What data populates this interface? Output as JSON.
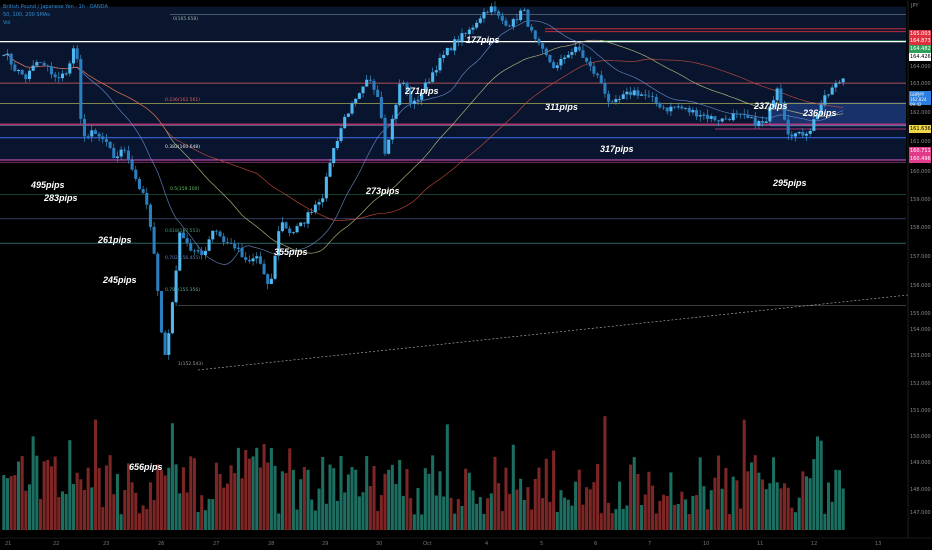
{
  "header": {
    "symbol_line": "British Pound / Japanese Yen · 1h · OANDA",
    "ma_line": "50, 100, 200 SMAs",
    "vol_line": "Vol"
  },
  "currency_label": "JPY",
  "pip_labels": [
    {
      "text": "177pips"
    },
    {
      "text": "271pips"
    },
    {
      "text": "311pips"
    },
    {
      "text": "237pips"
    },
    {
      "text": "236pips"
    },
    {
      "text": "317pips"
    },
    {
      "text": "295pips"
    },
    {
      "text": "495pips"
    },
    {
      "text": "283pips"
    },
    {
      "text": "273pips"
    },
    {
      "text": "261pips"
    },
    {
      "text": "355pips"
    },
    {
      "text": "245pips"
    },
    {
      "text": "656pips"
    }
  ],
  "fib_labels": [
    {
      "text": "0(165.658)"
    },
    {
      "text": "0.236(162.561)"
    },
    {
      "text": "0.382(160.648)"
    },
    {
      "text": "0.5(159.100)"
    },
    {
      "text": "0.618(157.553)"
    },
    {
      "text": "0.702(156.455)"
    },
    {
      "text": "0.786(155.356)"
    },
    {
      "text": "1(152.543)"
    }
  ],
  "price_axis": [
    "164.000",
    "163.000",
    "162.000",
    "161.000",
    "160.000",
    "159.000",
    "158.000",
    "157.000",
    "156.000",
    "155.000",
    "154.000",
    "153.000",
    "152.000",
    "151.000",
    "150.000",
    "149.000",
    "148.000",
    "147.000"
  ],
  "price_tags": [
    {
      "text": "165.003",
      "color": "#e03040"
    },
    {
      "text": "164.873",
      "color": "#e03040"
    },
    {
      "text": "164.482",
      "color": "#2f9e5a"
    },
    {
      "text": "164.426",
      "color": "#ffffff"
    },
    {
      "text": "GBPJPY 162.824 09:42",
      "color": "#2b7de0"
    },
    {
      "text": "161.636",
      "color": "#f0d84a"
    },
    {
      "text": "160.711",
      "color": "#e23a8a"
    },
    {
      "text": "160.496",
      "color": "#e23a8a"
    }
  ],
  "time_axis": [
    "21",
    "22",
    "23",
    "26",
    "27",
    "28",
    "29",
    "30",
    "Oct",
    "4",
    "5",
    "6",
    "7",
    "10",
    "11",
    "12",
    "13"
  ],
  "chart_data": {
    "type": "candlestick",
    "instrument": "GBPJPY",
    "timeframe": "1h",
    "last_price": 162.824,
    "y_range": [
      146.5,
      166.3
    ],
    "close_path": [
      [
        0,
        164.0
      ],
      [
        2,
        163.2
      ],
      [
        4,
        162.8
      ],
      [
        6,
        163.5
      ],
      [
        8,
        163.2
      ],
      [
        10,
        162.7
      ],
      [
        12,
        163.4
      ],
      [
        13,
        164.6
      ],
      [
        14,
        160.6
      ],
      [
        15,
        160.1
      ],
      [
        16,
        160.3
      ],
      [
        18,
        160.0
      ],
      [
        20,
        159.2
      ],
      [
        22,
        159.6
      ],
      [
        24,
        158.2
      ],
      [
        26,
        157.0
      ],
      [
        27,
        155.2
      ],
      [
        28,
        153.1
      ],
      [
        29,
        150.0
      ],
      [
        30,
        151.5
      ],
      [
        31,
        153.8
      ],
      [
        32,
        156.0
      ],
      [
        33,
        155.5
      ],
      [
        34,
        155.0
      ],
      [
        36,
        154.8
      ],
      [
        38,
        156.1
      ],
      [
        40,
        155.4
      ],
      [
        42,
        155.2
      ],
      [
        44,
        154.4
      ],
      [
        46,
        154.8
      ],
      [
        48,
        153.2
      ],
      [
        49,
        154.5
      ],
      [
        50,
        156.4
      ],
      [
        52,
        155.8
      ],
      [
        54,
        156.2
      ],
      [
        56,
        157.0
      ],
      [
        58,
        157.6
      ],
      [
        59,
        159.0
      ],
      [
        60,
        159.8
      ],
      [
        62,
        161.2
      ],
      [
        64,
        161.8
      ],
      [
        66,
        162.7
      ],
      [
        68,
        162.0
      ],
      [
        69,
        159.5
      ],
      [
        70,
        160.5
      ],
      [
        72,
        162.8
      ],
      [
        74,
        161.5
      ],
      [
        76,
        162.3
      ],
      [
        78,
        163.2
      ],
      [
        80,
        163.9
      ],
      [
        82,
        164.5
      ],
      [
        84,
        164.8
      ],
      [
        86,
        165.5
      ],
      [
        88,
        166.0
      ],
      [
        90,
        165.4
      ],
      [
        92,
        165.2
      ],
      [
        94,
        165.9
      ],
      [
        96,
        164.5
      ],
      [
        98,
        163.8
      ],
      [
        100,
        163.2
      ],
      [
        102,
        163.9
      ],
      [
        104,
        164.1
      ],
      [
        106,
        163.3
      ],
      [
        108,
        162.7
      ],
      [
        110,
        161.5
      ],
      [
        112,
        161.9
      ],
      [
        114,
        162.2
      ],
      [
        116,
        162.0
      ],
      [
        118,
        161.7
      ],
      [
        120,
        161.4
      ],
      [
        122,
        161.5
      ],
      [
        124,
        161.3
      ],
      [
        126,
        161.2
      ],
      [
        128,
        161.0
      ],
      [
        130,
        160.9
      ],
      [
        132,
        161.1
      ],
      [
        134,
        161.0
      ],
      [
        136,
        160.8
      ],
      [
        138,
        160.7
      ],
      [
        140,
        162.5
      ],
      [
        142,
        160.4
      ],
      [
        144,
        160.2
      ],
      [
        146,
        160.5
      ],
      [
        148,
        161.6
      ],
      [
        150,
        162.3
      ],
      [
        152,
        162.8
      ]
    ],
    "sma_series": [
      {
        "color": "#6b8fd4"
      },
      {
        "color": "#c8c888"
      },
      {
        "color": "#d05040"
      }
    ],
    "fib_retracement": {
      "level_0": 165.658,
      "level_1": 152.543
    },
    "trend_line": "dashed rising support"
  }
}
